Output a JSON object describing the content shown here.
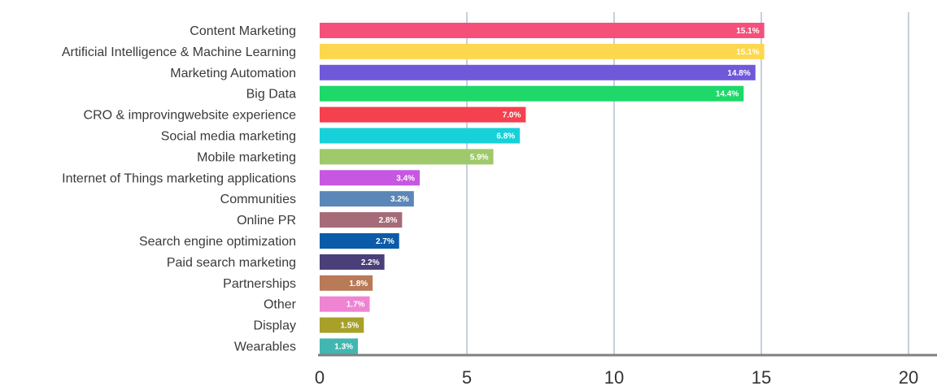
{
  "chart_data": {
    "type": "bar",
    "orientation": "horizontal",
    "categories": [
      "Content Marketing",
      "Artificial Intelligence & Machine Learning",
      "Marketing Automation",
      "Big Data",
      "CRO & improvingwebsite experience",
      "Social media marketing",
      "Mobile marketing",
      "Internet of Things marketing applications",
      "Communities",
      "Online PR",
      "Search engine optimization",
      "Paid search marketing",
      "Partnerships",
      "Other",
      "Display",
      "Wearables"
    ],
    "values": [
      15.1,
      15.1,
      14.8,
      14.4,
      7.0,
      6.8,
      5.9,
      3.4,
      3.2,
      2.8,
      2.7,
      2.2,
      1.8,
      1.7,
      1.5,
      1.3
    ],
    "value_labels": [
      "15.1%",
      "15.1%",
      "14.8%",
      "14.4%",
      "7.0%",
      "6.8%",
      "5.9%",
      "3.4%",
      "3.2%",
      "2.8%",
      "2.7%",
      "2.2%",
      "1.8%",
      "1.7%",
      "1.5%",
      "1.3%"
    ],
    "colors": [
      "#f5507a",
      "#fdd74e",
      "#6f59d9",
      "#1ed86a",
      "#f5404f",
      "#16d2d8",
      "#9fc96a",
      "#c657e0",
      "#5b86b8",
      "#a66b78",
      "#0b5ba8",
      "#4a3f78",
      "#b87a57",
      "#ef84d3",
      "#a7a029",
      "#42b6b0"
    ],
    "xlim": [
      0,
      20
    ],
    "xticks": [
      "0",
      "5",
      "10",
      "15",
      "20"
    ],
    "grid": true,
    "title": "",
    "xlabel": "",
    "ylabel": ""
  }
}
